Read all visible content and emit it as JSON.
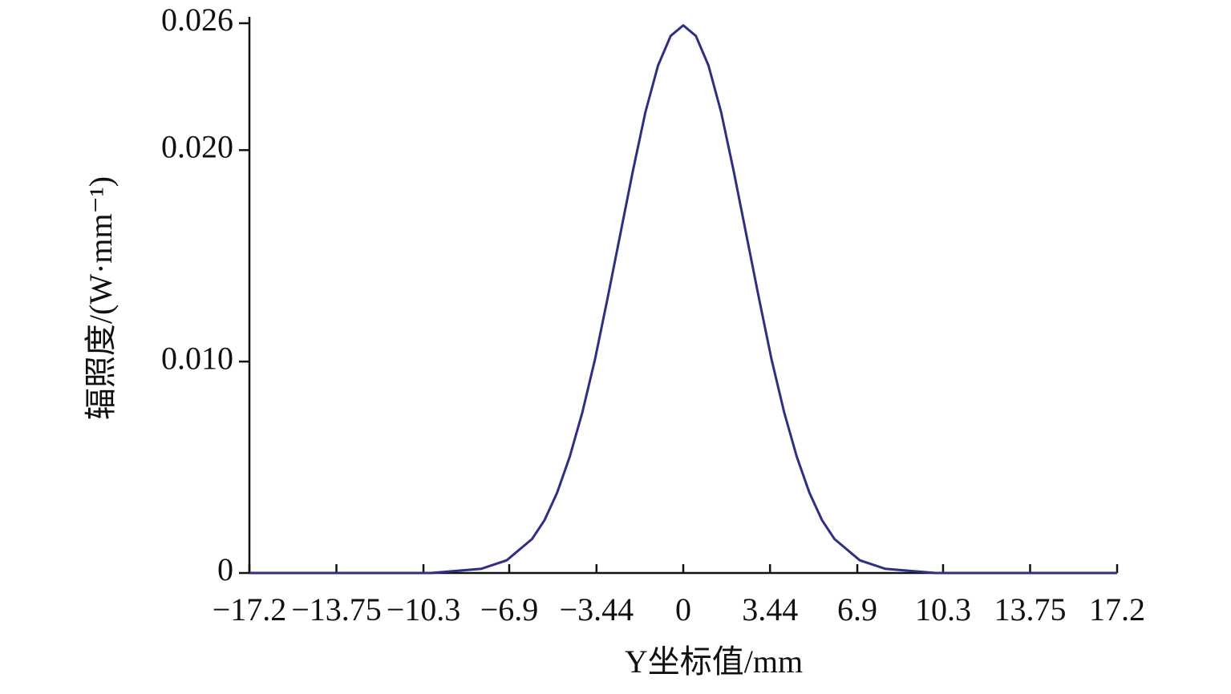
{
  "chart_data": {
    "type": "line",
    "y_label": "辐照度/(W·mm⁻¹)",
    "x_label": "Y坐标值/mm",
    "x": [
      -17.2,
      -14,
      -12,
      -10,
      -9,
      -8,
      -7,
      -6,
      -5.5,
      -5,
      -4.5,
      -4,
      -3.5,
      -3,
      -2.5,
      -2,
      -1.5,
      -1,
      -0.5,
      0,
      0.5,
      1,
      1.5,
      2,
      2.5,
      3,
      3.5,
      4,
      4.5,
      5,
      5.5,
      6,
      7,
      8,
      9,
      10,
      12,
      14,
      17.2
    ],
    "series": [
      {
        "color": "#2e2e8a",
        "values": [
          0,
          0,
          0,
          0,
          0.0001,
          0.0002,
          0.0006,
          0.0016,
          0.0025,
          0.0038,
          0.0055,
          0.0076,
          0.0101,
          0.013,
          0.016,
          0.019,
          0.0218,
          0.024,
          0.0254,
          0.0259,
          0.0254,
          0.024,
          0.0218,
          0.019,
          0.016,
          0.013,
          0.0101,
          0.0076,
          0.0055,
          0.0038,
          0.0025,
          0.0016,
          0.0006,
          0.0002,
          0.0001,
          0,
          0,
          0,
          0
        ]
      }
    ],
    "xlim": [
      -17.2,
      17.2
    ],
    "xticks": [
      {
        "value": -17.2,
        "label": "−17.2"
      },
      {
        "value": -13.75,
        "label": "−13.75"
      },
      {
        "value": -10.3,
        "label": "−10.3"
      },
      {
        "value": -6.9,
        "label": "−6.9"
      },
      {
        "value": -3.44,
        "label": "−3.44"
      },
      0,
      3.44,
      6.9,
      10.3,
      13.75,
      17.2
    ],
    "ylim": [
      0,
      0.026
    ],
    "yticks": [
      0,
      {
        "value": 0.01,
        "label": "0.010"
      },
      {
        "value": 0.02,
        "label": "0.020"
      },
      0.026
    ],
    "grid": false
  }
}
